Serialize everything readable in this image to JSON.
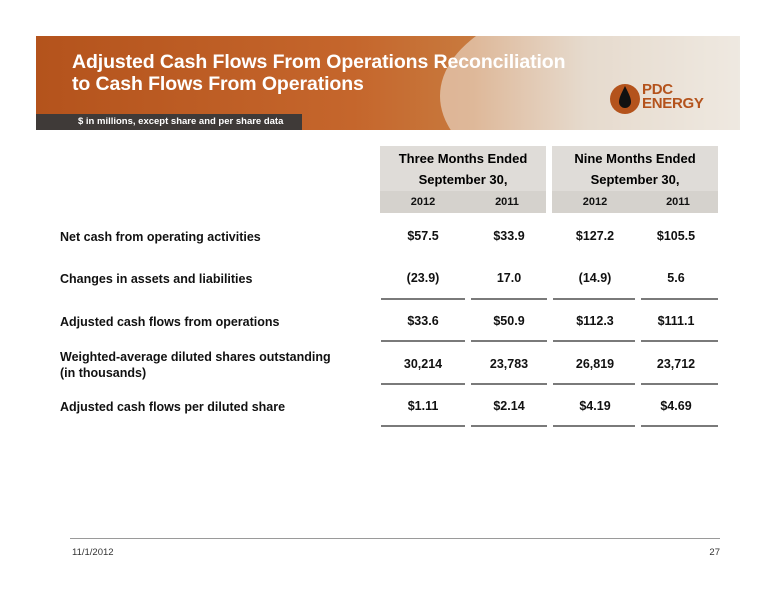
{
  "header": {
    "title_line1": "Adjusted Cash Flows From Operations Reconciliation",
    "title_line2": "to Cash Flows From Operations",
    "subtitle": "$ in millions, except share and per share data",
    "logo_text_line1": "PDC",
    "logo_text_line2": "ENERGY",
    "brand_color": "#b4531c"
  },
  "table": {
    "groups": [
      {
        "label": "Three Months Ended",
        "sublabel": "September 30,",
        "years": [
          "2012",
          "2011"
        ]
      },
      {
        "label": "Nine Months Ended",
        "sublabel": "September 30,",
        "years": [
          "2012",
          "2011"
        ]
      }
    ],
    "rows": [
      {
        "label": "Net cash from operating activities",
        "values": [
          "$57.5",
          "$33.9",
          "$127.2",
          "$105.5"
        ]
      },
      {
        "label": "Changes in assets and liabilities",
        "values": [
          "(23.9)",
          "17.0",
          "(14.9)",
          "5.6"
        ]
      },
      {
        "label": "Adjusted cash flows from operations",
        "values": [
          "$33.6",
          "$50.9",
          "$112.3",
          "$111.1"
        ]
      },
      {
        "label_line1": "Weighted-average diluted shares outstanding",
        "label_line2": "(in thousands)",
        "values": [
          "30,214",
          "23,783",
          "26,819",
          "23,712"
        ]
      },
      {
        "label": "Adjusted cash flows per diluted share",
        "values": [
          "$1.11",
          "$2.14",
          "$4.19",
          "$4.69"
        ]
      }
    ]
  },
  "footer": {
    "date": "11/1/2012",
    "page": "27"
  }
}
